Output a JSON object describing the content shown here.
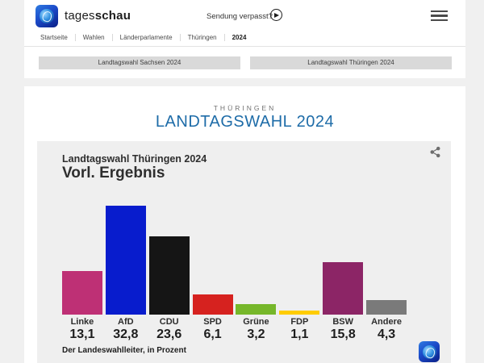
{
  "header": {
    "brand_regular": "tages",
    "brand_bold": "schau",
    "sendung_verpasst": "Sendung verpasst?",
    "breadcrumb": [
      {
        "label": "Startseite"
      },
      {
        "label": "Wahlen"
      },
      {
        "label": "Länderparlamente"
      },
      {
        "label": "Thüringen"
      },
      {
        "label": "2024"
      }
    ],
    "tabs": [
      {
        "label": "Landtagswahl Sachsen 2024"
      },
      {
        "label": "Landtagswahl Thüringen 2024"
      }
    ]
  },
  "main": {
    "kicker": "THÜRINGEN",
    "title": "LANDTAGSWAHL 2024",
    "title_color": "#1e6ca8"
  },
  "chart": {
    "subtitle": "Landtagswahl Thüringen 2024",
    "title": "Vorl. Ergebnis",
    "source": "Der Landeswahlleiter, in Prozent"
  },
  "chart_data": {
    "type": "bar",
    "title": "Vorl. Ergebnis",
    "subtitle": "Landtagswahl Thüringen 2024",
    "categories": [
      "Linke",
      "AfD",
      "CDU",
      "SPD",
      "Grüne",
      "FDP",
      "BSW",
      "Andere"
    ],
    "values": [
      13.1,
      32.8,
      23.6,
      6.1,
      3.2,
      1.1,
      15.8,
      4.3
    ],
    "value_labels": [
      "13,1",
      "32,8",
      "23,6",
      "6,1",
      "3,2",
      "1,1",
      "15,8",
      "4,3"
    ],
    "colors": [
      "#be3075",
      "#081ccd",
      "#151515",
      "#d6221f",
      "#76b72a",
      "#ffcc00",
      "#8c2566",
      "#7a7a7a"
    ],
    "unit": "Prozent",
    "source": "Der Landeswahlleiter, in Prozent",
    "ylim": [
      0,
      35
    ],
    "grid": false,
    "legend": "none"
  }
}
